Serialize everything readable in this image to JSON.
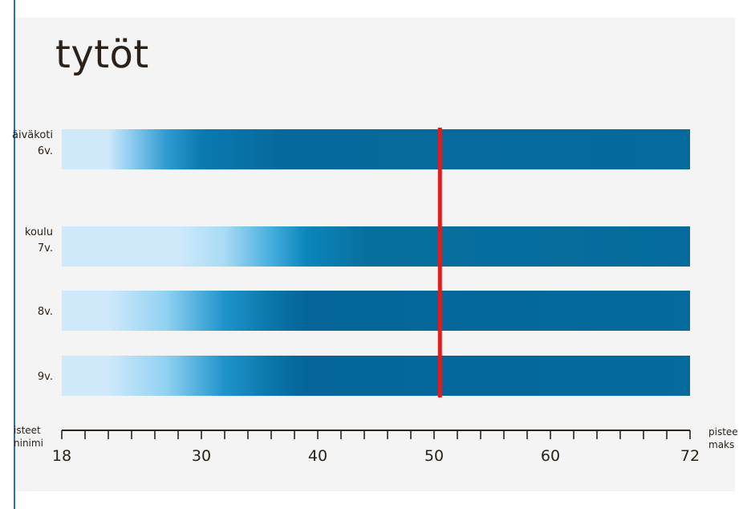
{
  "chart_data": {
    "type": "bar",
    "title": "tytöt",
    "categories": [
      [
        "äiväkoti",
        "6v."
      ],
      [
        "koulu",
        "7v."
      ],
      [
        "",
        "8v."
      ],
      [
        "",
        "9v."
      ]
    ],
    "series": [
      {
        "gradient_stops": [
          [
            18,
            "#cfe9fb"
          ],
          [
            22,
            "#cfe9fb"
          ],
          [
            24,
            "#8ccbf0"
          ],
          [
            27,
            "#2f9bd0"
          ],
          [
            30,
            "#0a7ab0"
          ],
          [
            37,
            "#07699b"
          ],
          [
            72,
            "#046b9c"
          ]
        ]
      },
      {
        "gradient_stops": [
          [
            18,
            "#cfe9fb"
          ],
          [
            28,
            "#cfe9fb"
          ],
          [
            32,
            "#a9dbf5"
          ],
          [
            36,
            "#45aedd"
          ],
          [
            39,
            "#0b86bc"
          ],
          [
            44,
            "#08709f"
          ],
          [
            72,
            "#046b9c"
          ]
        ]
      },
      {
        "gradient_stops": [
          [
            18,
            "#cfe9fb"
          ],
          [
            22,
            "#cfe9fb"
          ],
          [
            27,
            "#91d1f2"
          ],
          [
            32,
            "#1e94cc"
          ],
          [
            36,
            "#0a76a9"
          ],
          [
            39,
            "#05659a"
          ],
          [
            72,
            "#046b9c"
          ]
        ]
      },
      {
        "gradient_stops": [
          [
            18,
            "#cfe9fb"
          ],
          [
            22,
            "#cfe9fb"
          ],
          [
            27,
            "#91d1f2"
          ],
          [
            32,
            "#1e94cc"
          ],
          [
            36,
            "#0a76a9"
          ],
          [
            39,
            "#05659a"
          ],
          [
            72,
            "#046b9c"
          ]
        ]
      }
    ],
    "marker_value": 50.5,
    "marker_color": "#e11c1c",
    "xlim": [
      18,
      72
    ],
    "minor_tick_step": 2,
    "xticks": [
      18,
      30,
      40,
      50,
      60,
      72
    ],
    "x_left_note": [
      "isteet",
      "ninimi"
    ],
    "x_right_note": [
      "pistee",
      "maks"
    ],
    "colors": {
      "panel": "#f4f4f4",
      "text": "#2b2118",
      "bar_dark": "#046b9c",
      "bar_light": "#cfe9fb"
    }
  }
}
